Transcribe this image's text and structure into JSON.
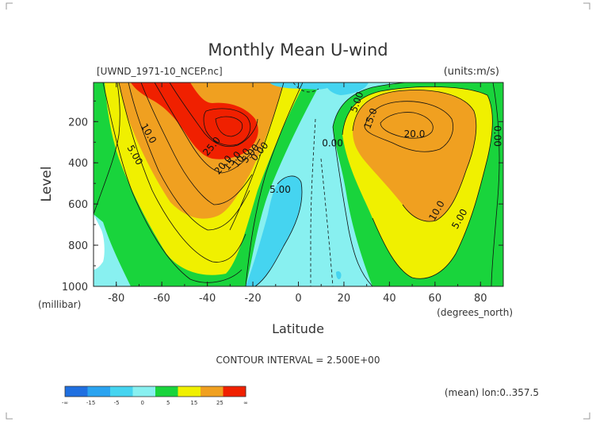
{
  "chart_data": {
    "type": "heatmap",
    "title": "Monthly Mean U-wind",
    "file_label": "[UWND_1971-10_NCEP.nc]",
    "units_label": "(units:m/s)",
    "xlabel": "Latitude",
    "x_unit": "(degrees_north)",
    "ylabel": "Level",
    "y_unit": "(millibar)",
    "xlim": [
      -90,
      90
    ],
    "ylim": [
      1000,
      10
    ],
    "x_ticks": [
      -80,
      -60,
      -40,
      -20,
      0,
      20,
      40,
      60,
      80
    ],
    "x_tick_labels": [
      "-80",
      "-60",
      "-40",
      "-20",
      "0",
      "20",
      "40",
      "60",
      "80"
    ],
    "y_ticks": [
      200,
      400,
      600,
      800,
      1000
    ],
    "y_tick_labels": [
      "200",
      "400",
      "600",
      "800",
      "1000"
    ],
    "contour_interval_text": "CONTOUR INTERVAL = 2.500E+00",
    "footer_text": "(mean) lon:0..357.5",
    "levels": [
      -15,
      -5,
      0,
      5,
      15,
      25
    ],
    "colorbar": {
      "labels": [
        "-∞",
        "-15",
        "-5",
        "0",
        "5",
        "15",
        "25",
        "∞"
      ],
      "colors": [
        "#1f6fe0",
        "#2aa3f0",
        "#45d4f0",
        "#88f0f0",
        "#19d43c",
        "#f0f000",
        "#f0a020",
        "#f02000"
      ]
    },
    "contour_labels": [
      {
        "text": "5.00",
        "lat": -73,
        "lev": 370
      },
      {
        "text": "10.0",
        "lat": -67,
        "lev": 265
      },
      {
        "text": "25.0",
        "lat": -37,
        "lev": 330
      },
      {
        "text": "20.0",
        "lat": -32,
        "lev": 420
      },
      {
        "text": "15.0",
        "lat": -28,
        "lev": 400
      },
      {
        "text": "10.0",
        "lat": -24,
        "lev": 385
      },
      {
        "text": "5.00",
        "lat": -20,
        "lev": 365
      },
      {
        "text": "0.00",
        "lat": -16,
        "lev": 355
      },
      {
        "text": "5.00",
        "lat": -8,
        "lev": 545
      },
      {
        "text": "5.00",
        "lat": 27,
        "lev": 110
      },
      {
        "text": "0.00",
        "lat": 15,
        "lev": 320
      },
      {
        "text": "15.0",
        "lat": 33,
        "lev": 190
      },
      {
        "text": "20.0",
        "lat": 51,
        "lev": 275
      },
      {
        "text": "10.0",
        "lat": 62,
        "lev": 640
      },
      {
        "text": "5.00",
        "lat": 72,
        "lev": 680
      },
      {
        "text": "0.00",
        "lat": 86,
        "lev": 270
      }
    ]
  }
}
